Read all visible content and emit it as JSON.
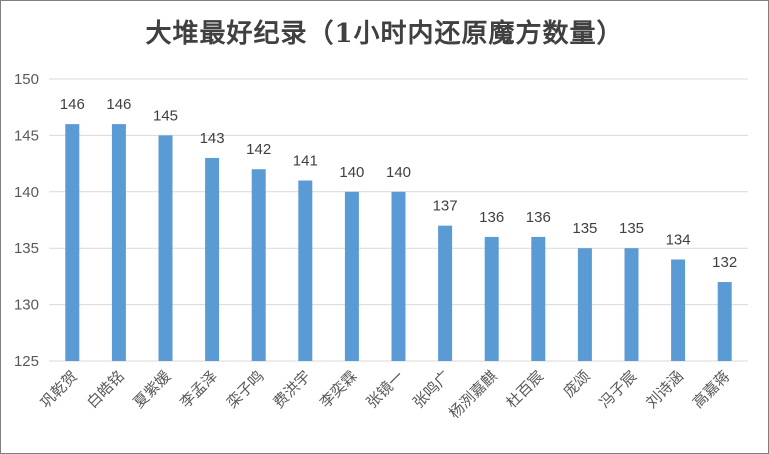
{
  "chart_data": {
    "type": "bar",
    "title": "大堆最好纪录（1小时内还原魔方数量）",
    "xlabel": "",
    "ylabel": "",
    "categories": [
      "巩乾贺",
      "白皓铭",
      "夏紫媛",
      "李孟泽",
      "栾子鸣",
      "费洪宇",
      "李奕霖",
      "张镜一",
      "张鸣广",
      "杨洌嘉麒",
      "杜百宸",
      "庞颂",
      "冯子宸",
      "刘诗涵",
      "高嘉蒋"
    ],
    "values": [
      146,
      146,
      145,
      143,
      142,
      141,
      140,
      140,
      137,
      136,
      136,
      135,
      135,
      134,
      132
    ],
    "ylim": [
      125,
      150
    ],
    "yticks": [
      125,
      130,
      135,
      140,
      145,
      150
    ],
    "grid": true,
    "legend": "none",
    "bar_color": "#5b9bd5",
    "grid_color": "#d9d9d9"
  }
}
